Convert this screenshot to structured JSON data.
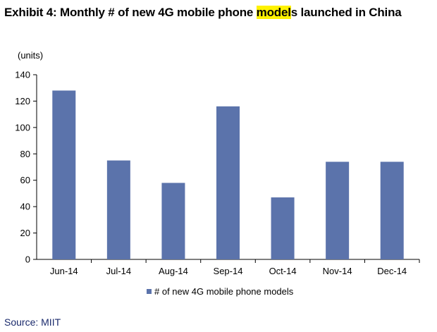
{
  "title": {
    "prefix": "Exhibit 4: Monthly # of new 4G mobile phone ",
    "highlight": "model",
    "suffix": "s launched in China"
  },
  "source": "Source: MIIT",
  "colors": {
    "bar": "#5b73ab",
    "highlight": "#fff200",
    "source": "#1a2a6c"
  },
  "chart_data": {
    "type": "bar",
    "categories": [
      "Jun-14",
      "Jul-14",
      "Aug-14",
      "Sep-14",
      "Oct-14",
      "Nov-14",
      "Dec-14"
    ],
    "series": [
      {
        "name": "# of new 4G mobile phone models",
        "values": [
          128,
          75,
          58,
          116,
          47,
          74,
          74
        ]
      }
    ],
    "ylabel": "(units)",
    "ylim": [
      0,
      140
    ],
    "yticks": [
      0,
      20,
      40,
      60,
      80,
      100,
      120,
      140
    ],
    "grid": false,
    "legend": "bottom"
  }
}
